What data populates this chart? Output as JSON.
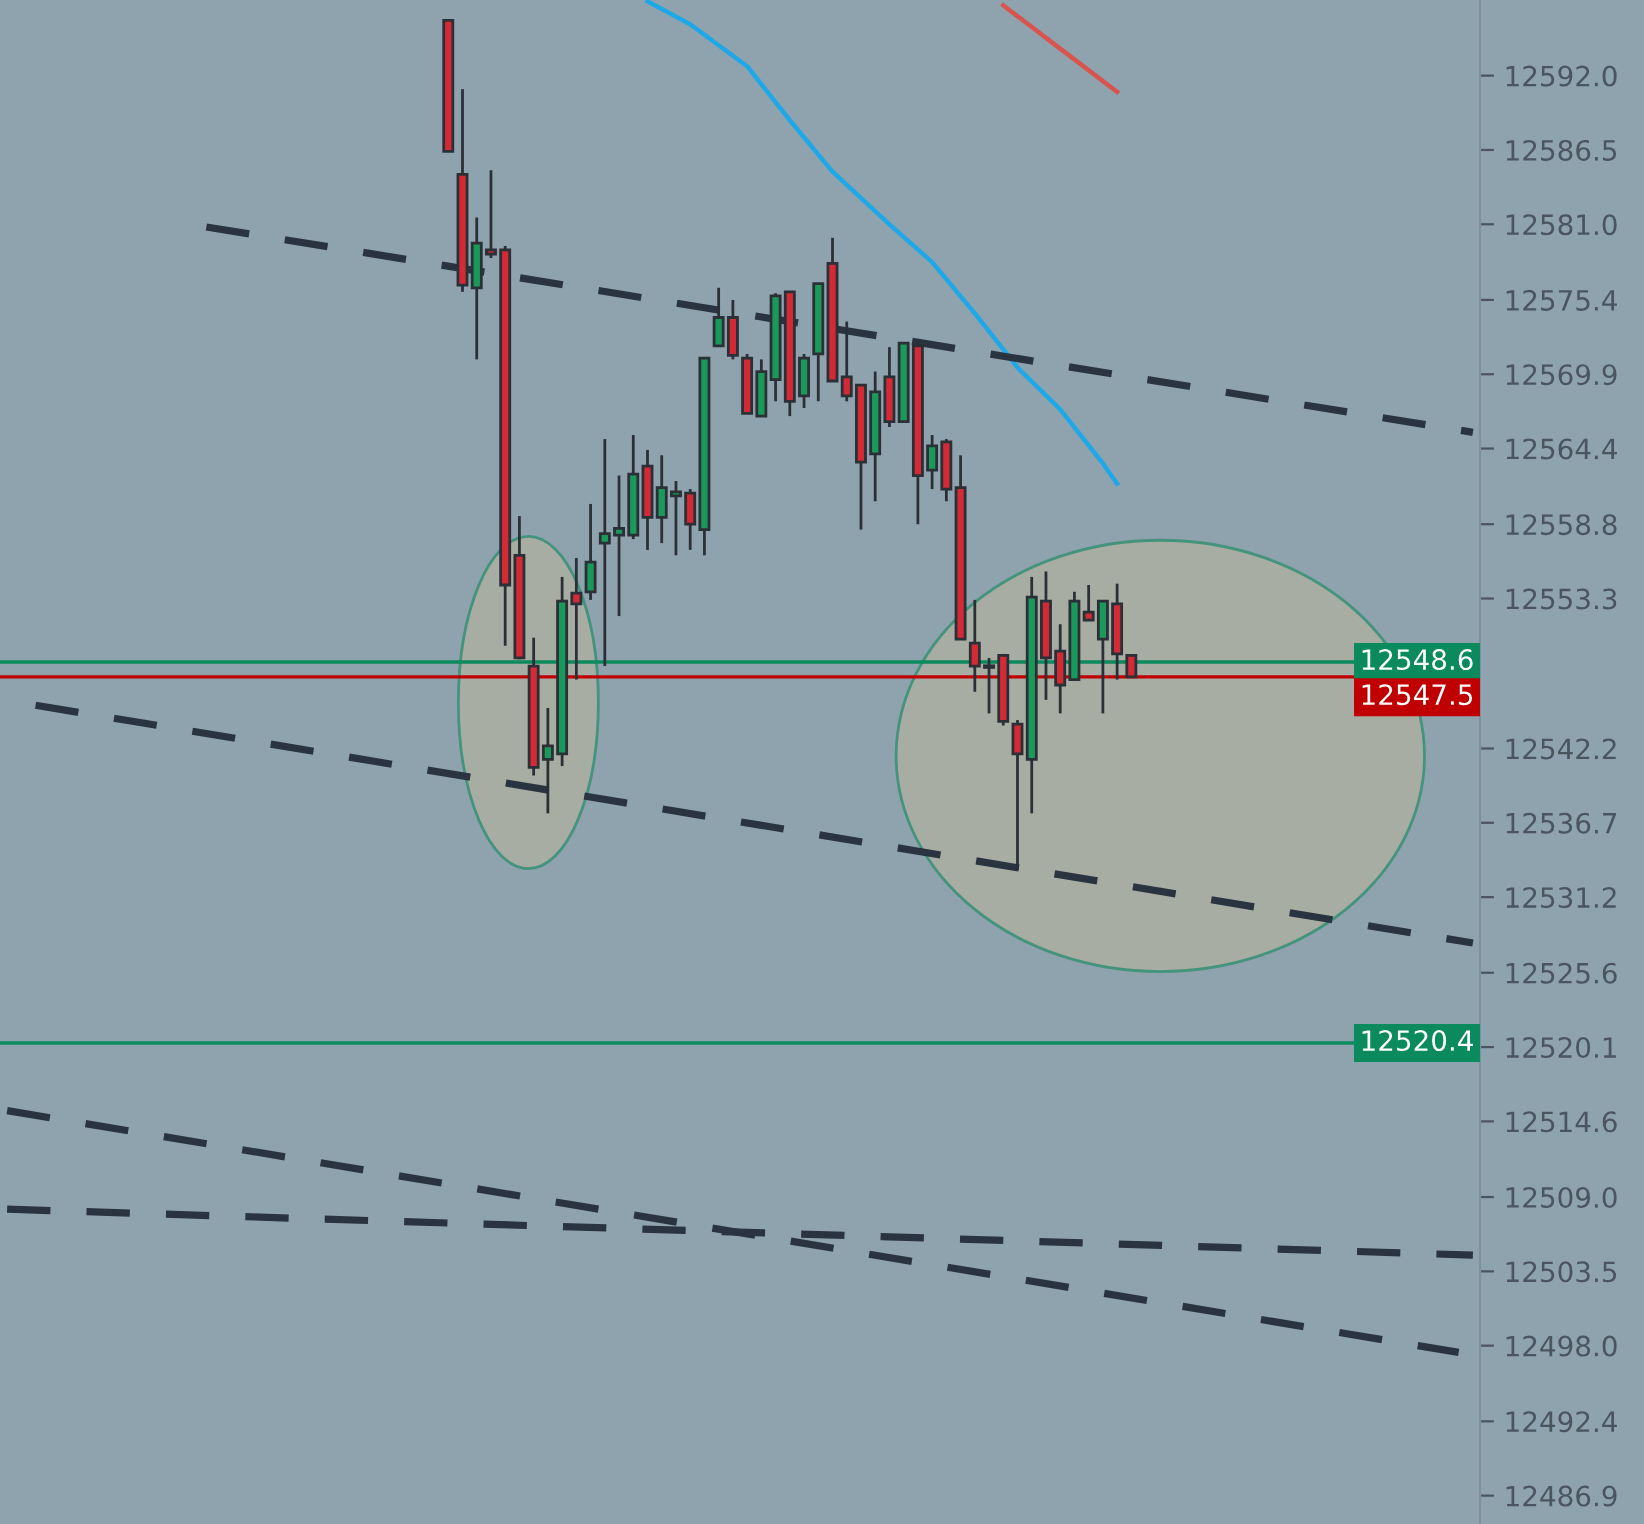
{
  "chart_data": {
    "type": "candlestick",
    "categories": [
      null,
      null,
      null,
      null,
      null,
      null,
      null,
      null,
      null,
      null,
      null,
      null,
      null,
      null,
      null,
      null,
      null,
      null,
      null,
      null,
      null,
      null,
      null,
      null,
      null,
      null,
      null,
      null,
      null,
      null,
      null,
      null,
      null,
      null,
      null,
      null,
      null,
      null,
      null,
      null,
      null,
      null,
      null,
      null,
      null,
      null,
      null,
      null,
      null,
      null,
      null,
      null,
      null,
      null,
      null,
      null,
      null,
      null,
      null,
      null,
      null,
      null,
      null,
      null,
      null,
      null,
      null,
      null,
      null,
      null,
      null,
      null,
      null,
      null,
      null,
      null,
      null,
      null,
      null,
      null,
      null,
      null,
      null,
      null,
      null,
      null,
      null,
      null,
      null,
      null,
      null,
      null,
      null,
      null,
      null,
      null,
      null,
      null,
      null,
      null,
      null,
      null,
      null,
      null
    ],
    "ohlc": [
      null,
      null,
      null,
      null,
      null,
      null,
      null,
      null,
      null,
      null,
      null,
      null,
      null,
      null,
      null,
      null,
      null,
      null,
      null,
      null,
      null,
      null,
      null,
      null,
      null,
      null,
      null,
      null,
      null,
      null,
      null,
      [
        12596.1,
        12596.1,
        12586.4,
        12586.4
      ],
      [
        12584.7,
        12591.0,
        12576.0,
        12576.5
      ],
      [
        12576.3,
        12581.5,
        12571.0,
        12579.6
      ],
      [
        12579.1,
        12585.0,
        12578.5,
        12578.8
      ],
      [
        12579.1,
        12579.4,
        12549.8,
        12554.3
      ],
      [
        12556.5,
        12559.4,
        12548.8,
        12548.9
      ],
      [
        12548.3,
        12550.4,
        12540.2,
        12540.8
      ],
      [
        12541.4,
        12545.2,
        12537.4,
        12542.4
      ],
      [
        12541.8,
        12554.9,
        12540.9,
        12553.1
      ],
      [
        12553.7,
        12556.3,
        12547.3,
        12552.9
      ],
      [
        12553.8,
        12560.3,
        12553.2,
        12556.0
      ],
      [
        12557.4,
        12565.1,
        12548.3,
        12558.1
      ],
      [
        12558.0,
        12562.4,
        12552.0,
        12558.5
      ],
      [
        12558.0,
        12565.4,
        12557.7,
        12562.5
      ],
      [
        12563.1,
        12564.3,
        12556.9,
        12559.3
      ],
      [
        12559.3,
        12563.9,
        12557.4,
        12561.5
      ],
      [
        12560.9,
        12562.0,
        12556.5,
        12561.2
      ],
      [
        12561.1,
        12561.4,
        12556.9,
        12558.8
      ],
      [
        12558.4,
        12571.1,
        12556.5,
        12571.1
      ],
      [
        12572.0,
        12576.3,
        12572.0,
        12574.1
      ],
      [
        12574.1,
        12575.4,
        12571.0,
        12571.3
      ],
      [
        12571.1,
        12571.4,
        12567.0,
        12567.0
      ],
      [
        12566.8,
        12571.0,
        12566.8,
        12570.1
      ],
      [
        12569.5,
        12575.9,
        12567.9,
        12575.7
      ],
      [
        12576.0,
        12576.0,
        12566.8,
        12567.9
      ],
      [
        12568.3,
        12571.4,
        12567.4,
        12571.1
      ],
      [
        12571.4,
        12576.6,
        12567.9,
        12576.6
      ],
      [
        12578.1,
        12580.0,
        12569.4,
        12569.4
      ],
      [
        12569.7,
        12573.8,
        12567.9,
        12568.3
      ],
      [
        12569.1,
        12569.1,
        12558.4,
        12563.4
      ],
      [
        12564.0,
        12570.1,
        12560.5,
        12568.6
      ],
      [
        12569.7,
        12571.9,
        12566.0,
        12566.4
      ],
      [
        12566.4,
        12572.2,
        12566.4,
        12572.2
      ],
      [
        12572.0,
        12572.5,
        12558.8,
        12562.4
      ],
      [
        12562.8,
        12565.4,
        12561.4,
        12564.6
      ],
      [
        12564.9,
        12565.1,
        12560.5,
        12561.4
      ],
      [
        12561.5,
        12563.9,
        12550.3,
        12550.3
      ],
      [
        12550.0,
        12553.2,
        12546.4,
        12548.3
      ],
      [
        12548.3,
        12548.9,
        12544.8,
        12548.2
      ],
      [
        12549.1,
        12549.2,
        12543.9,
        12544.2
      ],
      [
        12544.0,
        12544.3,
        12533.2,
        12541.8
      ],
      [
        12541.4,
        12554.9,
        12537.4,
        12553.4
      ],
      [
        12553.1,
        12555.3,
        12545.8,
        12548.9
      ],
      [
        12549.4,
        12551.4,
        12544.8,
        12546.9
      ],
      [
        12547.3,
        12553.8,
        12547.3,
        12553.1
      ],
      [
        12552.3,
        12554.3,
        12551.7,
        12551.7
      ],
      [
        12550.3,
        12553.1,
        12544.8,
        12553.1
      ],
      [
        12552.9,
        12554.4,
        12547.3,
        12549.2
      ],
      [
        12549.1,
        12549.1,
        12547.5,
        12547.5
      ],
      null,
      null,
      null,
      null,
      null,
      null,
      null,
      null,
      null,
      null,
      null,
      null,
      null,
      null,
      null,
      null,
      null,
      null,
      null,
      null,
      null,
      null,
      null,
      null
    ],
    "colors": [
      null,
      null,
      null,
      null,
      null,
      null,
      null,
      null,
      null,
      null,
      null,
      null,
      null,
      null,
      null,
      null,
      null,
      null,
      null,
      null,
      null,
      null,
      null,
      null,
      null,
      null,
      null,
      null,
      null,
      null,
      null,
      "#d42a36",
      "#d42a36",
      "#1a9a5a",
      "#d42a36",
      "#d42a36",
      "#d42a36",
      "#d42a36",
      "#1a9a5a",
      "#1a9a5a",
      "#d42a36",
      "#1a9a5a",
      "#1a9a5a",
      "#1a9a5a",
      "#1a9a5a",
      "#d42a36",
      "#1a9a5a",
      "#1a9a5a",
      "#d42a36",
      "#1a9a5a",
      "#1a9a5a",
      "#d42a36",
      "#d42a36",
      "#1a9a5a",
      "#1a9a5a",
      "#d42a36",
      "#1a9a5a",
      "#1a9a5a",
      "#d42a36",
      "#d42a36",
      "#d42a36",
      "#1a9a5a",
      "#d42a36",
      "#1a9a5a",
      "#d42a36",
      "#1a9a5a",
      "#d42a36",
      "#d42a36",
      "#d42a36",
      "#d42a36",
      "#d42a36",
      "#d42a36",
      "#1a9a5a",
      "#d42a36",
      "#d42a36",
      "#1a9a5a",
      "#d42a36",
      "#1a9a5a",
      "#d42a36",
      "#d42a36",
      null,
      null,
      null,
      null,
      null,
      null,
      null,
      null,
      null,
      null,
      null,
      null,
      null,
      null,
      null,
      null,
      null,
      null,
      null,
      null,
      null,
      null,
      null,
      null
    ],
    "series": [
      {
        "type": "line",
        "color": "#1fa8e8",
        "line_style": "solid",
        "values": [
          null,
          null,
          null,
          null,
          null,
          null,
          null,
          null,
          null,
          null,
          null,
          null,
          null,
          null,
          null,
          null,
          null,
          null,
          null,
          null,
          null,
          null,
          null,
          null,
          null,
          null,
          null,
          null,
          null,
          null,
          null,
          null,
          null,
          null,
          null,
          null,
          null,
          null,
          null,
          null,
          null,
          null,
          null,
          null,
          null,
          12597.5,
          null,
          null,
          12595.8,
          null,
          null,
          null,
          12592.7,
          null,
          null,
          12588.7,
          null,
          null,
          12584.9,
          null,
          null,
          null,
          12581.0,
          null,
          null,
          12578.2,
          null,
          null,
          12574.4,
          null,
          null,
          12570.4,
          null,
          null,
          12567.3,
          null,
          null,
          12563.3,
          12561.8,
          null,
          null,
          null,
          null,
          null,
          null,
          null,
          null,
          null,
          null,
          null,
          null,
          null,
          null,
          null,
          null,
          null,
          null,
          null,
          null,
          null,
          null,
          null,
          null,
          null
        ]
      },
      {
        "type": "line",
        "color": "#d9534f",
        "line_style": "solid",
        "values": [
          null,
          null,
          null,
          null,
          null,
          null,
          null,
          null,
          null,
          null,
          null,
          null,
          null,
          null,
          null,
          null,
          null,
          null,
          null,
          null,
          null,
          null,
          null,
          null,
          null,
          null,
          null,
          null,
          null,
          null,
          null,
          null,
          null,
          null,
          null,
          null,
          null,
          null,
          null,
          null,
          null,
          null,
          null,
          null,
          null,
          null,
          null,
          null,
          null,
          null,
          null,
          null,
          null,
          null,
          null,
          null,
          null,
          null,
          null,
          null,
          null,
          null,
          null,
          null,
          null,
          null,
          null,
          null,
          null,
          null,
          12597.2,
          null,
          null,
          null,
          12594.0,
          null,
          null,
          null,
          12590.8,
          null,
          null,
          null,
          null,
          null,
          null,
          null,
          null,
          null,
          null,
          null,
          null,
          null,
          null,
          null,
          null,
          null,
          null,
          null,
          null,
          null,
          null,
          null,
          null,
          null
        ]
      },
      {
        "type": "line",
        "color": "#2a3340",
        "line_style": "dashed",
        "values": [
          null,
          null,
          null,
          null,
          null,
          null,
          null,
          null,
          null,
          null,
          null,
          null,
          null,
          null,
          12580.8,
          null,
          null,
          null,
          null,
          null,
          null,
          null,
          null,
          null,
          null,
          null,
          null,
          null,
          null,
          null,
          null,
          null,
          null,
          null,
          null,
          null,
          null,
          null,
          null,
          null,
          null,
          null,
          null,
          null,
          null,
          null,
          null,
          null,
          null,
          null,
          null,
          null,
          null,
          null,
          null,
          null,
          null,
          null,
          null,
          null,
          null,
          null,
          null,
          null,
          null,
          null,
          null,
          null,
          null,
          null,
          null,
          null,
          null,
          null,
          null,
          null,
          null,
          null,
          null,
          null,
          null,
          null,
          null,
          null,
          null,
          null,
          null,
          null,
          null,
          null,
          null,
          null,
          null,
          null,
          null,
          null,
          null,
          null,
          null,
          null,
          null,
          null,
          null,
          12565.6
        ]
      },
      {
        "type": "line",
        "color": "#2a3340",
        "line_style": "dashed",
        "values": [
          null,
          null,
          12545.4,
          null,
          null,
          null,
          null,
          null,
          null,
          null,
          null,
          null,
          null,
          null,
          null,
          null,
          null,
          null,
          null,
          null,
          null,
          null,
          null,
          null,
          null,
          null,
          null,
          null,
          null,
          null,
          null,
          null,
          null,
          null,
          null,
          null,
          null,
          null,
          null,
          null,
          null,
          null,
          null,
          null,
          null,
          null,
          null,
          null,
          null,
          null,
          null,
          null,
          null,
          null,
          null,
          null,
          null,
          null,
          null,
          null,
          null,
          null,
          null,
          null,
          null,
          null,
          null,
          null,
          null,
          null,
          null,
          null,
          null,
          null,
          null,
          null,
          null,
          null,
          null,
          null,
          null,
          null,
          null,
          null,
          null,
          null,
          null,
          null,
          null,
          null,
          null,
          null,
          null,
          null,
          null,
          null,
          null,
          null,
          null,
          null,
          null,
          null,
          null,
          12527.8
        ]
      },
      {
        "type": "line",
        "color": "#2a3340",
        "line_style": "dashed",
        "values": [
          12515.4,
          null,
          null,
          null,
          null,
          null,
          null,
          null,
          null,
          null,
          null,
          null,
          null,
          null,
          null,
          null,
          null,
          null,
          null,
          null,
          null,
          null,
          null,
          null,
          null,
          null,
          null,
          null,
          null,
          null,
          null,
          null,
          null,
          null,
          null,
          null,
          null,
          null,
          null,
          null,
          null,
          null,
          null,
          null,
          null,
          null,
          null,
          null,
          null,
          null,
          null,
          null,
          null,
          null,
          null,
          null,
          null,
          null,
          null,
          null,
          null,
          null,
          null,
          null,
          null,
          null,
          null,
          null,
          null,
          null,
          null,
          null,
          null,
          null,
          null,
          null,
          null,
          null,
          null,
          null,
          null,
          null,
          null,
          null,
          null,
          null,
          null,
          null,
          null,
          null,
          null,
          null,
          null,
          null,
          null,
          null,
          null,
          null,
          null,
          null,
          null,
          null,
          12497.5,
          null
        ]
      },
      {
        "type": "line",
        "color": "#2a3340",
        "line_style": "dashed",
        "values": [
          12508.1,
          null,
          null,
          null,
          null,
          null,
          null,
          null,
          null,
          null,
          null,
          null,
          null,
          null,
          null,
          null,
          null,
          null,
          null,
          null,
          null,
          null,
          null,
          null,
          null,
          null,
          null,
          null,
          null,
          null,
          null,
          null,
          null,
          null,
          null,
          null,
          null,
          null,
          null,
          null,
          null,
          null,
          null,
          null,
          null,
          null,
          null,
          null,
          null,
          null,
          null,
          null,
          null,
          null,
          null,
          null,
          null,
          null,
          null,
          null,
          null,
          null,
          null,
          null,
          null,
          null,
          null,
          null,
          null,
          null,
          null,
          null,
          null,
          null,
          null,
          null,
          null,
          null,
          null,
          null,
          null,
          null,
          null,
          null,
          null,
          null,
          null,
          null,
          null,
          null,
          null,
          null,
          null,
          null,
          null,
          null,
          null,
          null,
          null,
          null,
          null,
          null,
          null,
          12504.7
        ]
      }
    ],
    "ref_lines": [
      {
        "axis": "y",
        "value": 12548.6,
        "label": "12548.6",
        "color": "#0b8a5e"
      },
      {
        "axis": "y",
        "value": 12547.5,
        "label": "12547.5",
        "color": "#c00000"
      },
      {
        "axis": "y",
        "value": 12520.4,
        "label": "12520.4",
        "color": "#0b8a5e"
      }
    ],
    "ylim": [
      12484.8,
      12597.6
    ],
    "yticks": [
      {
        "value": 12592.0,
        "label": "12592.0"
      },
      {
        "value": 12586.5,
        "label": "12586.5"
      },
      {
        "value": 12581.0,
        "label": "12581.0"
      },
      {
        "value": 12575.4,
        "label": "12575.4"
      },
      {
        "value": 12569.9,
        "label": "12569.9"
      },
      {
        "value": 12564.4,
        "label": "12564.4"
      },
      {
        "value": 12558.8,
        "label": "12558.8"
      },
      {
        "value": 12553.3,
        "label": "12553.3"
      },
      {
        "value": 12542.2,
        "label": "12542.2"
      },
      {
        "value": 12536.7,
        "label": "12536.7"
      },
      {
        "value": 12531.2,
        "label": "12531.2"
      },
      {
        "value": 12525.6,
        "label": "12525.6"
      },
      {
        "value": 12520.1,
        "label": "12520.1"
      },
      {
        "value": 12514.6,
        "label": "12514.6"
      },
      {
        "value": 12509.0,
        "label": "12509.0"
      },
      {
        "value": 12503.5,
        "label": "12503.5"
      },
      {
        "value": 12498.0,
        "label": "12498.0"
      },
      {
        "value": 12492.4,
        "label": "12492.4"
      },
      {
        "value": 12486.9,
        "label": "12486.9"
      }
    ],
    "tick_labels": "y",
    "grid": false,
    "legend": false
  }
}
